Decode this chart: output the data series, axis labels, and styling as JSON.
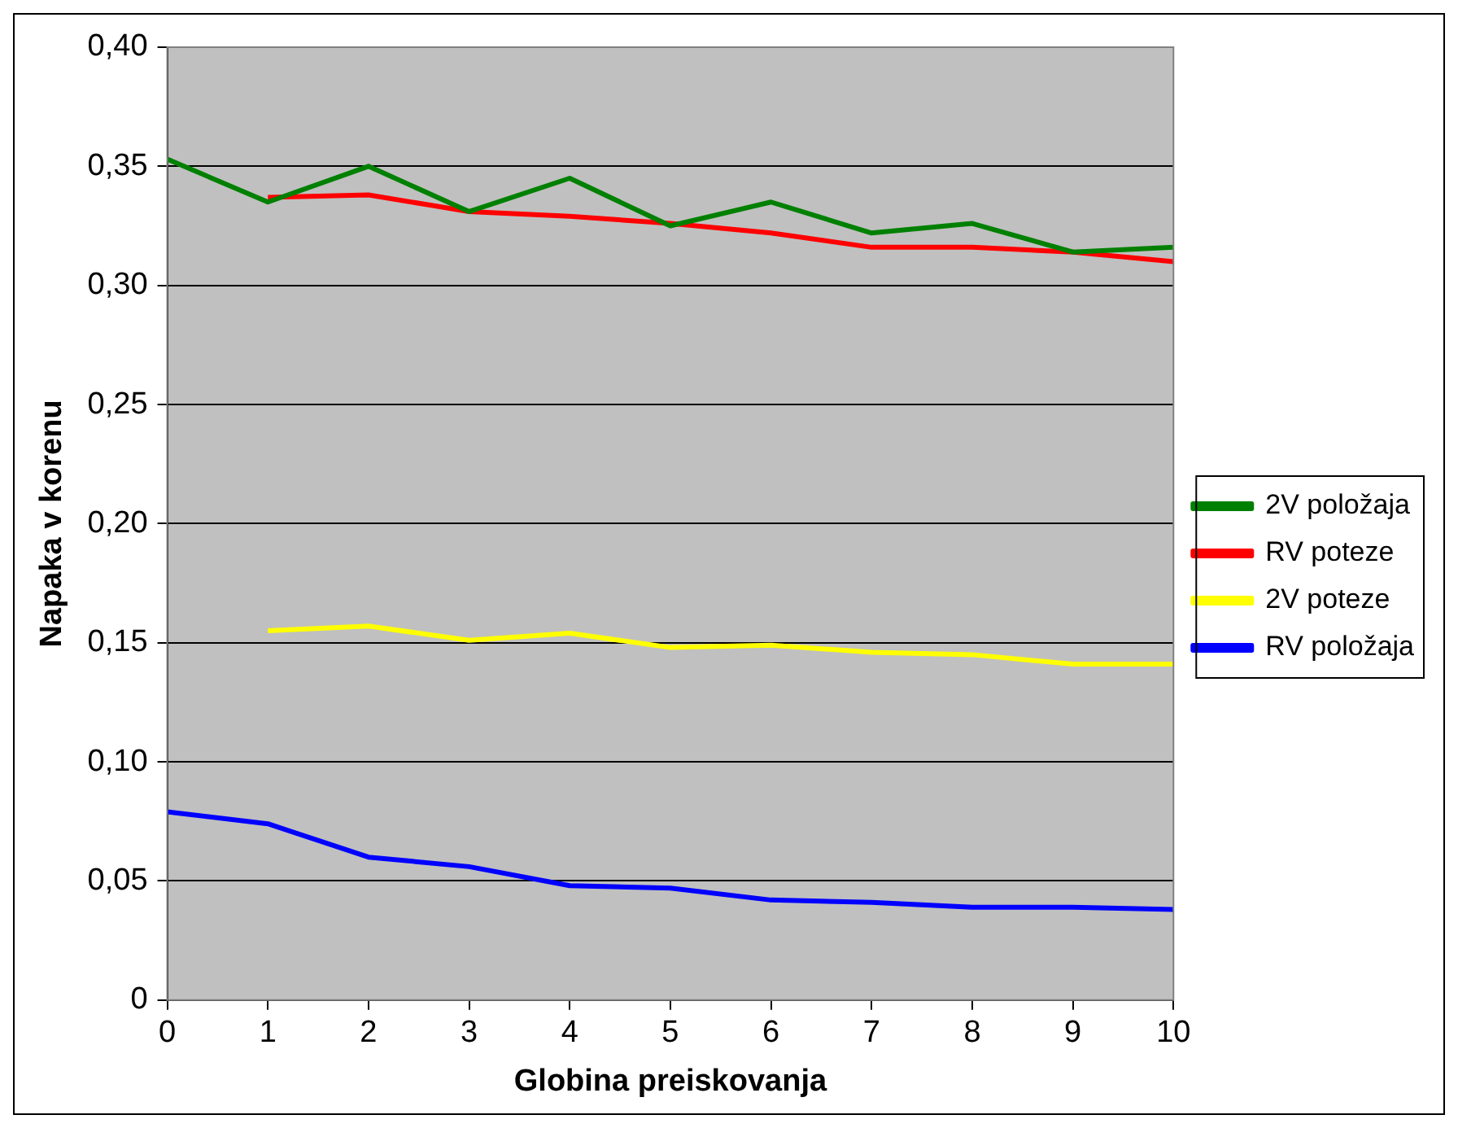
{
  "chart_data": {
    "type": "line",
    "xlabel": "Globina preiskovanja",
    "ylabel": "Napaka v korenu",
    "x": [
      0,
      1,
      2,
      3,
      4,
      5,
      6,
      7,
      8,
      9,
      10
    ],
    "series": [
      {
        "name": "2V položaja",
        "color": "#008000",
        "values": [
          0.353,
          0.335,
          0.35,
          0.331,
          0.345,
          0.325,
          0.335,
          0.322,
          0.326,
          0.314,
          0.316
        ]
      },
      {
        "name": "RV poteze",
        "color": "#ff0000",
        "values": [
          null,
          0.337,
          0.338,
          0.331,
          0.329,
          0.326,
          0.322,
          0.316,
          0.316,
          0.314,
          0.31
        ]
      },
      {
        "name": "2V poteze",
        "color": "#ffff00",
        "values": [
          null,
          0.155,
          0.157,
          0.151,
          0.154,
          0.148,
          0.149,
          0.146,
          0.145,
          0.141,
          0.141
        ]
      },
      {
        "name": "RV položaja",
        "color": "#0000ff",
        "values": [
          0.079,
          0.074,
          0.06,
          0.056,
          0.048,
          0.047,
          0.042,
          0.041,
          0.039,
          0.039,
          0.038
        ]
      }
    ],
    "xlim": [
      0,
      10
    ],
    "xticks": [
      0,
      1,
      2,
      3,
      4,
      5,
      6,
      7,
      8,
      9,
      10
    ],
    "ylim": [
      0,
      0.4
    ],
    "yticks": [
      {
        "value": 0,
        "label": "0"
      },
      {
        "value": 0.05,
        "label": "0,05"
      },
      {
        "value": 0.1,
        "label": "0,10"
      },
      {
        "value": 0.15,
        "label": "0,15"
      },
      {
        "value": 0.2,
        "label": "0,20"
      },
      {
        "value": 0.25,
        "label": "0,25"
      },
      {
        "value": 0.3,
        "label": "0,30"
      },
      {
        "value": 0.35,
        "label": "0,35"
      },
      {
        "value": 0.4,
        "label": "0,40"
      }
    ],
    "grid": "y",
    "legend": "right",
    "marker": "none",
    "line_style": "solid"
  }
}
